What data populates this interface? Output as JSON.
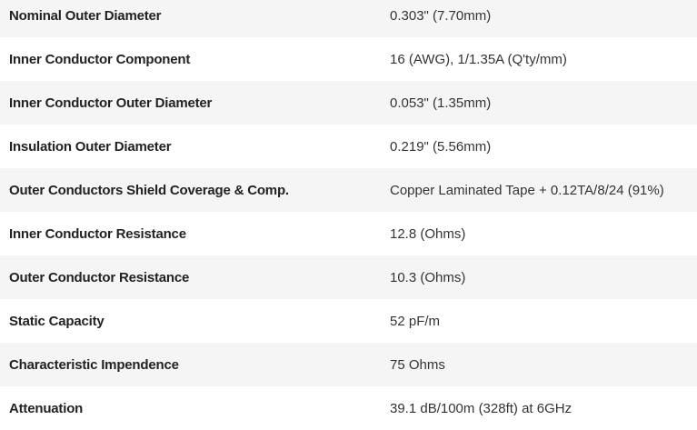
{
  "specs": [
    {
      "label": "Nominal Outer Diameter",
      "value": "0.303\" (7.70mm)"
    },
    {
      "label": "Inner Conductor Component",
      "value": "16 (AWG), 1/1.35A (Q'ty/mm)"
    },
    {
      "label": "Inner Conductor Outer Diameter",
      "value": "0.053\" (1.35mm)"
    },
    {
      "label": "Insulation Outer Diameter",
      "value": "0.219\" (5.56mm)"
    },
    {
      "label": "Outer Conductors Shield Coverage & Comp.",
      "value": "Copper Laminated Tape + 0.12TA/8/24 (91%)"
    },
    {
      "label": "Inner Conductor Resistance",
      "value": "12.8 (Ohms)"
    },
    {
      "label": "Outer Conductor Resistance",
      "value": "10.3 (Ohms)"
    },
    {
      "label": "Static Capacity",
      "value": "52 pF/m"
    },
    {
      "label": "Characteristic Impendence",
      "value": "75 Ohms"
    },
    {
      "label": "Attenuation",
      "value": "39.1 dB/100m (328ft) at 6GHz"
    }
  ]
}
